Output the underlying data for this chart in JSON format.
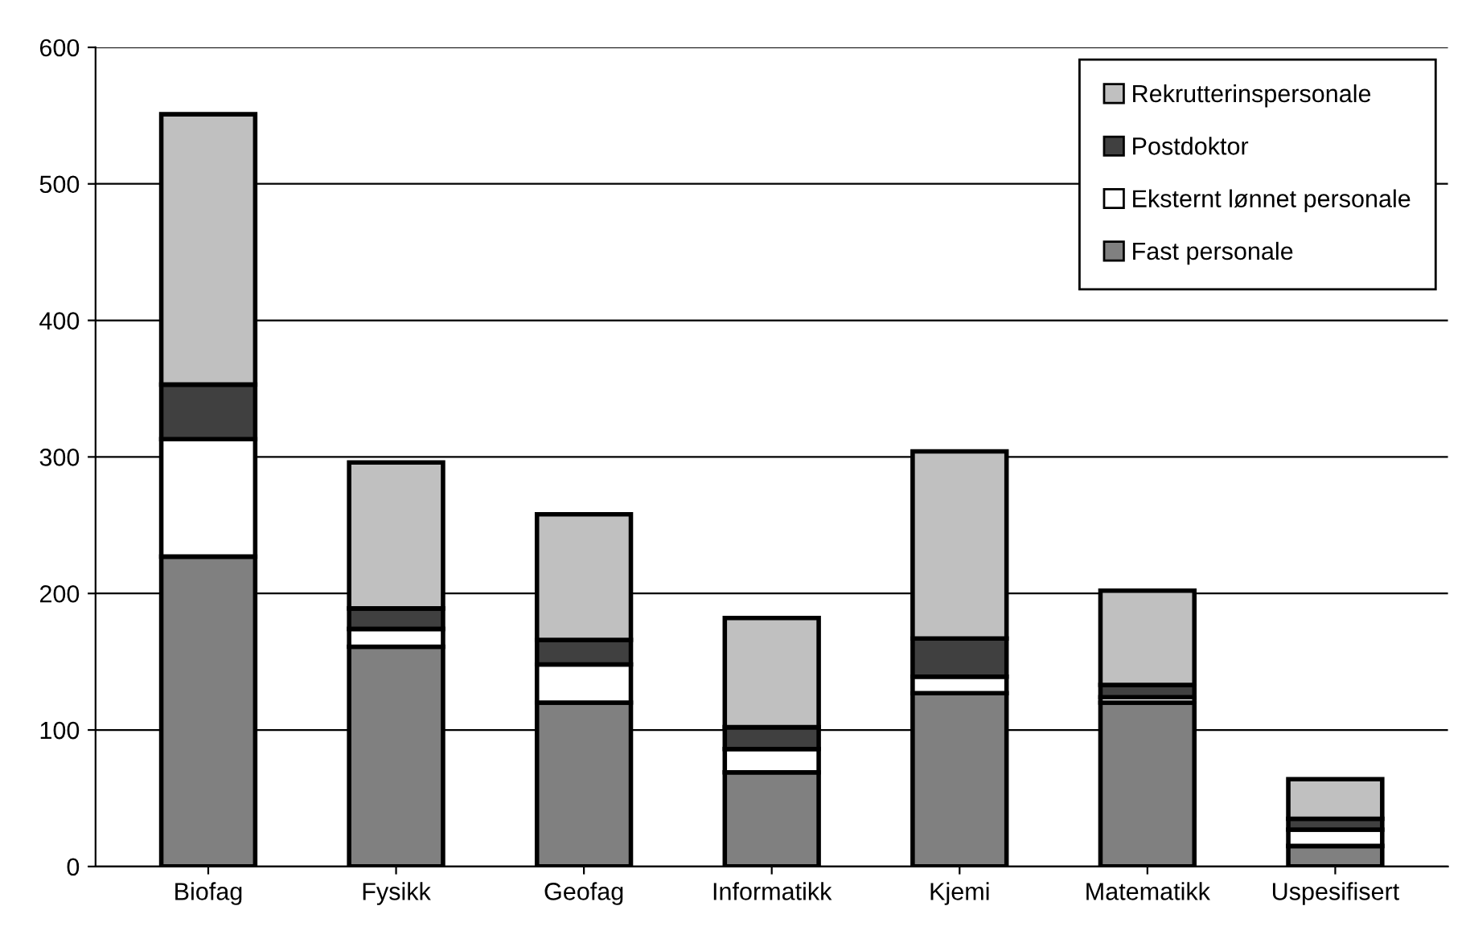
{
  "chart_data": {
    "type": "bar",
    "stacked": true,
    "categories": [
      "Biofag",
      "Fysikk",
      "Geofag",
      "Informatikk",
      "Kjemi",
      "Matematikk",
      "Uspesifisert"
    ],
    "series": [
      {
        "name": "Fast personale",
        "color": "#808080",
        "values": [
          227,
          161,
          120,
          69,
          127,
          120,
          15
        ]
      },
      {
        "name": "Eksternt lønnet personale",
        "color": "#ffffff",
        "values": [
          86,
          13,
          28,
          17,
          12,
          4,
          12
        ]
      },
      {
        "name": "Postdoktor",
        "color": "#404040",
        "values": [
          40,
          15,
          18,
          16,
          28,
          9,
          8
        ]
      },
      {
        "name": "Rekrutterinspersonale",
        "color": "#c0c0c0",
        "values": [
          198,
          107,
          92,
          80,
          137,
          69,
          29
        ]
      }
    ],
    "ylim": [
      0,
      600
    ],
    "yticks": [
      0,
      100,
      200,
      300,
      400,
      500,
      600
    ],
    "grid": "y",
    "legend": "top right"
  }
}
